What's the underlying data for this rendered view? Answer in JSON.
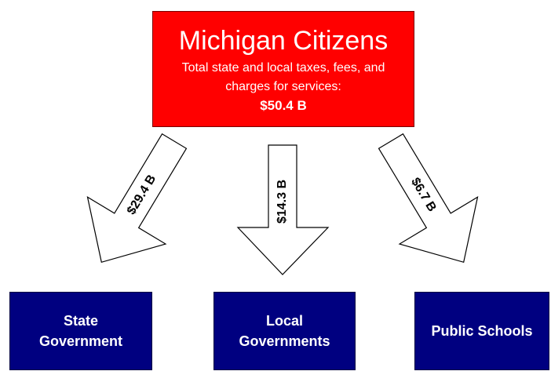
{
  "source": {
    "title": "Michigan Citizens",
    "subtitle": "Total state and local taxes, fees, and charges for services:",
    "amount": "$50.4 B"
  },
  "flows": [
    {
      "label": "$29.4 B"
    },
    {
      "label": "$14.3 B"
    },
    {
      "label": "$6.7 B"
    }
  ],
  "nodes": [
    {
      "label": "State Government"
    },
    {
      "label": "Local Governments"
    },
    {
      "label": "Public Schools"
    }
  ]
}
